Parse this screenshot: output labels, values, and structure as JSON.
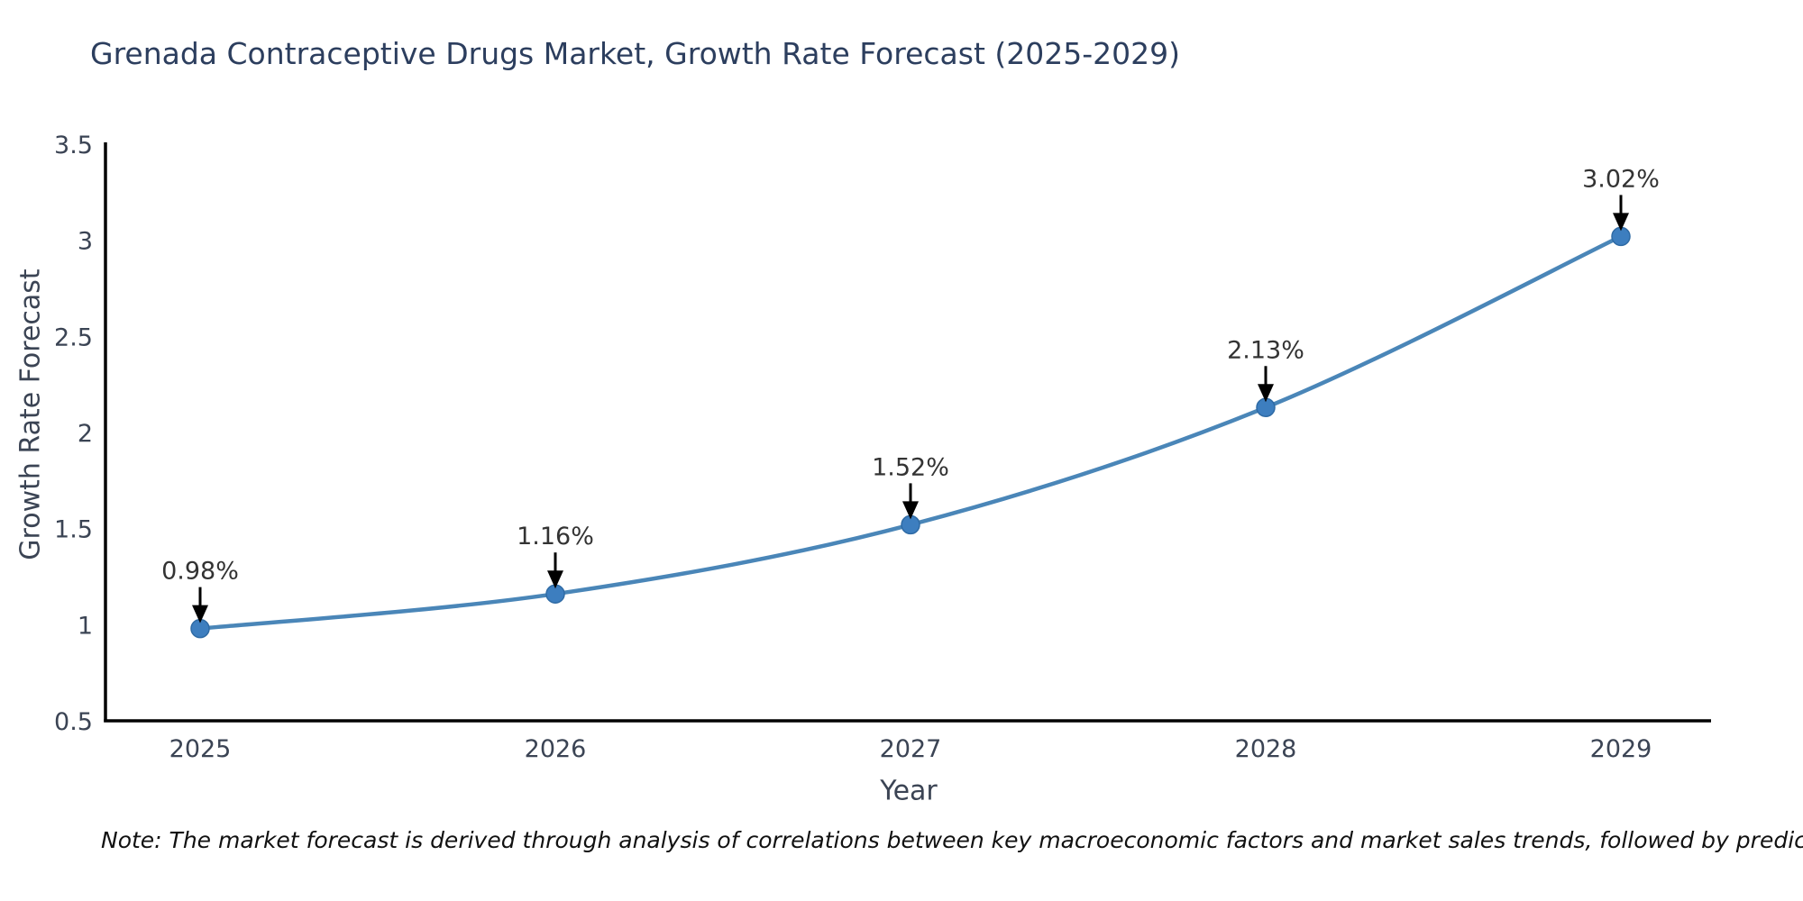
{
  "header": {
    "title": "Grenada Contraceptive Drugs Market, Growth Rate Forecast (2025-2029)"
  },
  "chart_data": {
    "type": "line",
    "title": "Grenada Contraceptive Drugs Market, Growth Rate Forecast (2025-2029)",
    "x": [
      2025,
      2026,
      2027,
      2028,
      2029
    ],
    "xtick_labels": [
      "2025",
      "2026",
      "2027",
      "2028",
      "2029"
    ],
    "series": [
      {
        "name": "Growth Rate Forecast",
        "values": [
          0.98,
          1.16,
          1.52,
          2.13,
          3.02
        ]
      }
    ],
    "point_labels": [
      "0.98%",
      "1.16%",
      "1.52%",
      "2.13%",
      "3.02%"
    ],
    "xlabel": "Year",
    "ylabel": "Growth Rate Forecast",
    "yticks": [
      0.5,
      1,
      1.5,
      2,
      2.5,
      3,
      3.5
    ],
    "ytick_labels": [
      "0.5",
      "1",
      "1.5",
      "2",
      "2.5",
      "3",
      "3.5"
    ],
    "ylim": [
      0.5,
      3.5
    ],
    "xlim": [
      2025,
      2029
    ],
    "grid": false,
    "legend_position": "none",
    "smooth": true,
    "colors": {
      "line": "#4a86b8",
      "marker_fill": "#3d7ebf",
      "marker_stroke": "#2f6ba5",
      "axis": "#000000",
      "annotation_text": "#333333",
      "annotation_arrow": "#000000"
    }
  },
  "footer": {
    "note": "Note: The market forecast is derived through analysis of correlations between key macroeconomic factors and market sales trends, followed by predictive modeling to project future sales"
  }
}
